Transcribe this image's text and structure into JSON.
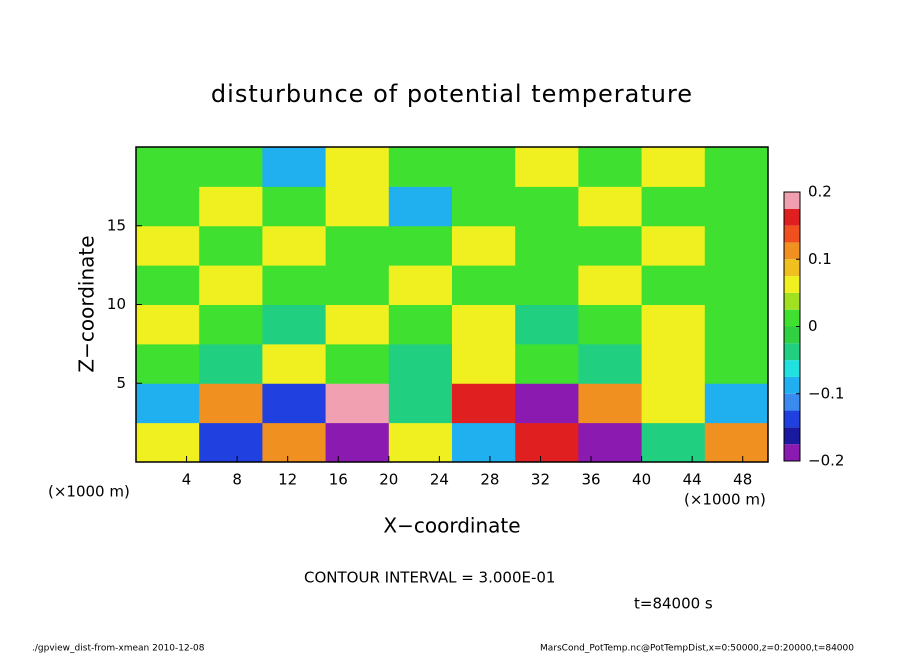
{
  "chart_data": {
    "type": "heatmap",
    "title": "disturbunce of potential temperature",
    "xlabel": "X−coordinate",
    "ylabel": "Z−coordinate",
    "xunit": "(×1000 m)",
    "yunit": "(×1000 m)",
    "xlim": [
      0,
      50
    ],
    "xticks": [
      4,
      8,
      12,
      16,
      20,
      24,
      28,
      32,
      36,
      40,
      44,
      48
    ],
    "ylim": [
      0,
      20
    ],
    "yticks": [
      5,
      10,
      15
    ],
    "x": [
      2.5,
      7.5,
      12.5,
      17.5,
      22.5,
      27.5,
      32.5,
      37.5,
      42.5,
      47.5
    ],
    "y": [
      1.25,
      3.75,
      6.25,
      8.75,
      11.25,
      13.75,
      16.25,
      18.75
    ],
    "z": [
      [
        0.05,
        -0.15,
        0.1,
        -0.2,
        0.05,
        -0.1,
        0.15,
        -0.2,
        -0.05,
        0.1
      ],
      [
        -0.1,
        0.1,
        -0.15,
        0.2,
        -0.05,
        0.15,
        -0.2,
        0.1,
        0.05,
        -0.1
      ],
      [
        0.0,
        -0.05,
        0.05,
        0.0,
        -0.05,
        0.05,
        0.0,
        -0.05,
        0.05,
        0.0
      ],
      [
        0.05,
        0.0,
        -0.05,
        0.05,
        0.0,
        0.05,
        -0.05,
        0.0,
        0.05,
        0.0
      ],
      [
        0.0,
        0.05,
        0.0,
        0.0,
        0.05,
        0.0,
        0.0,
        0.05,
        0.0,
        0.0
      ],
      [
        0.05,
        0.0,
        0.05,
        0.0,
        0.0,
        0.05,
        0.0,
        0.0,
        0.05,
        0.0
      ],
      [
        0.0,
        0.05,
        0.0,
        0.05,
        -0.1,
        0.0,
        0.0,
        0.05,
        0.0,
        0.0
      ],
      [
        0.0,
        0.0,
        -0.1,
        0.05,
        0.0,
        0.0,
        0.05,
        0.0,
        0.05,
        0.0
      ]
    ],
    "colorbar": {
      "lim": [
        -0.2,
        0.2
      ],
      "ticks": [
        {
          "value": -0.2,
          "label": "−0.2"
        },
        {
          "value": -0.1,
          "label": "−0.1"
        },
        0,
        0.1,
        0.2
      ],
      "levels": [
        -0.2,
        -0.175,
        -0.15,
        -0.125,
        -0.1,
        -0.075,
        -0.05,
        -0.025,
        0,
        0.025,
        0.05,
        0.075,
        0.1,
        0.125,
        0.15,
        0.175,
        0.2
      ],
      "colors": [
        "#8a1ab0",
        "#1a1aa0",
        "#2040e0",
        "#3a8af0",
        "#20b0f0",
        "#20e0e0",
        "#20d080",
        "#30d040",
        "#40e030",
        "#a0e020",
        "#f0f020",
        "#f0c020",
        "#f09020",
        "#f05020",
        "#e02020",
        "#f0a0b0"
      ]
    },
    "contour_interval": "CONTOUR INTERVAL = 3.000E-01",
    "time": "t=84000 s",
    "footer_left": "./gpview_dist-from-xmean  2010-12-08",
    "footer_right": "MarsCond_PotTemp.nc@PotTempDist,x=0:50000,z=0:20000,t=84000"
  }
}
